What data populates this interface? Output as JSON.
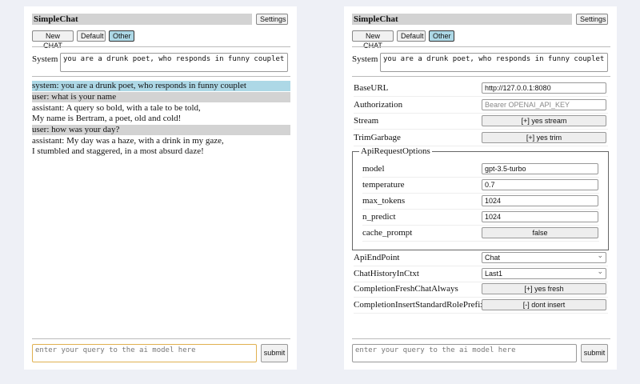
{
  "app": {
    "title": "SimpleChat",
    "settings_label": "Settings",
    "buttons": [
      "New CHAT",
      "Default",
      "Other"
    ],
    "system_label": "System",
    "system_value": "you are a drunk poet, who responds in funny couplet",
    "query_placeholder": "enter your query to the ai model here",
    "submit_label": "submit"
  },
  "chat": [
    {
      "role": "system",
      "lines": [
        "system: you are a drunk poet, who responds in funny couplet"
      ]
    },
    {
      "role": "user",
      "lines": [
        "user: what is your name"
      ]
    },
    {
      "role": "assistant",
      "lines": [
        "assistant: A query so bold, with a tale to be told,",
        "My name is Bertram, a poet, old and cold!"
      ]
    },
    {
      "role": "user",
      "lines": [
        "user: how was your day?"
      ]
    },
    {
      "role": "assistant",
      "lines": [
        "assistant: My day was a haze, with a drink in my gaze,",
        "I stumbled and staggered, in a most absurd daze!"
      ]
    }
  ],
  "settings": {
    "top": [
      {
        "label": "BaseURL",
        "type": "input",
        "value": "http://127.0.0.1:8080"
      },
      {
        "label": "Authorization",
        "type": "placeholder",
        "value": "Bearer OPENAI_API_KEY"
      },
      {
        "label": "Stream",
        "type": "toggle",
        "value": "[+] yes stream"
      },
      {
        "label": "TrimGarbage",
        "type": "toggle",
        "value": "[+] yes trim"
      }
    ],
    "api_options_legend": "ApiRequestOptions",
    "api_options": [
      {
        "label": "model",
        "type": "input",
        "value": "gpt-3.5-turbo"
      },
      {
        "label": "temperature",
        "type": "input",
        "value": "0.7"
      },
      {
        "label": "max_tokens",
        "type": "input",
        "value": "1024"
      },
      {
        "label": "n_predict",
        "type": "input",
        "value": "1024"
      },
      {
        "label": "cache_prompt",
        "type": "toggle",
        "value": "false"
      }
    ],
    "bottom": [
      {
        "label": "ApiEndPoint",
        "type": "select",
        "value": "Chat"
      },
      {
        "label": "ChatHistoryInCtxt",
        "type": "select",
        "value": "Last1"
      },
      {
        "label": "CompletionFreshChatAlways",
        "type": "toggle",
        "value": "[+] yes fresh"
      },
      {
        "label": "CompletionInsertStandardRolePrefix",
        "type": "toggle",
        "value": "[-] dont insert"
      }
    ]
  }
}
